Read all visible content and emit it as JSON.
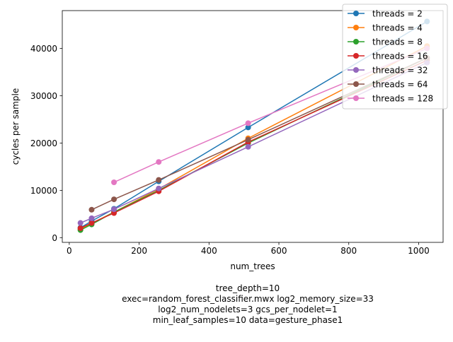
{
  "chart_data": {
    "type": "line",
    "xlabel": "num_trees",
    "ylabel": "cycles per sample",
    "xlim": [
      -20,
      1070
    ],
    "ylim": [
      -1000,
      48000
    ],
    "x_ticks": [
      0,
      200,
      400,
      600,
      800,
      1000
    ],
    "y_ticks": [
      0,
      10000,
      20000,
      30000,
      40000
    ],
    "x_tick_labels": [
      "0",
      "200",
      "400",
      "600",
      "800",
      "1000"
    ],
    "y_tick_labels": [
      "0",
      "10000",
      "20000",
      "30000",
      "40000"
    ],
    "grid": false,
    "legend_position": "top-right",
    "x": [
      32,
      64,
      128,
      256,
      512,
      1024
    ],
    "series": [
      {
        "name": "threads = 2",
        "color": "#1f77b4",
        "values": [
          2100,
          3500,
          6100,
          11900,
          23300,
          45700
        ]
      },
      {
        "name": "threads = 4",
        "color": "#ff7f0e",
        "values": [
          1800,
          3000,
          5400,
          10300,
          21000,
          40500
        ]
      },
      {
        "name": "threads = 8",
        "color": "#2ca02c",
        "values": [
          1600,
          2800,
          5400,
          10000,
          20000,
          38000
        ]
      },
      {
        "name": "threads = 16",
        "color": "#d62728",
        "values": [
          2000,
          3100,
          5200,
          9800,
          20200,
          37500
        ]
      },
      {
        "name": "threads = 32",
        "color": "#9467bd",
        "values": [
          3100,
          4100,
          6000,
          10400,
          19200,
          37000
        ]
      },
      {
        "name": "threads = 64",
        "color": "#8c564b",
        "values": [
          null,
          5900,
          8100,
          12200,
          20700,
          38000
        ]
      },
      {
        "name": "threads = 128",
        "color": "#e377c2",
        "values": [
          null,
          null,
          11700,
          16000,
          24200,
          40000
        ]
      }
    ]
  },
  "caption": {
    "line1": "tree_depth=10",
    "line2": "exec=random_forest_classifier.mwx   log2_memory_size=33",
    "line3": "log2_num_nodelets=3   gcs_per_nodelet=1",
    "line4": "min_leaf_samples=10   data=gesture_phase1"
  }
}
